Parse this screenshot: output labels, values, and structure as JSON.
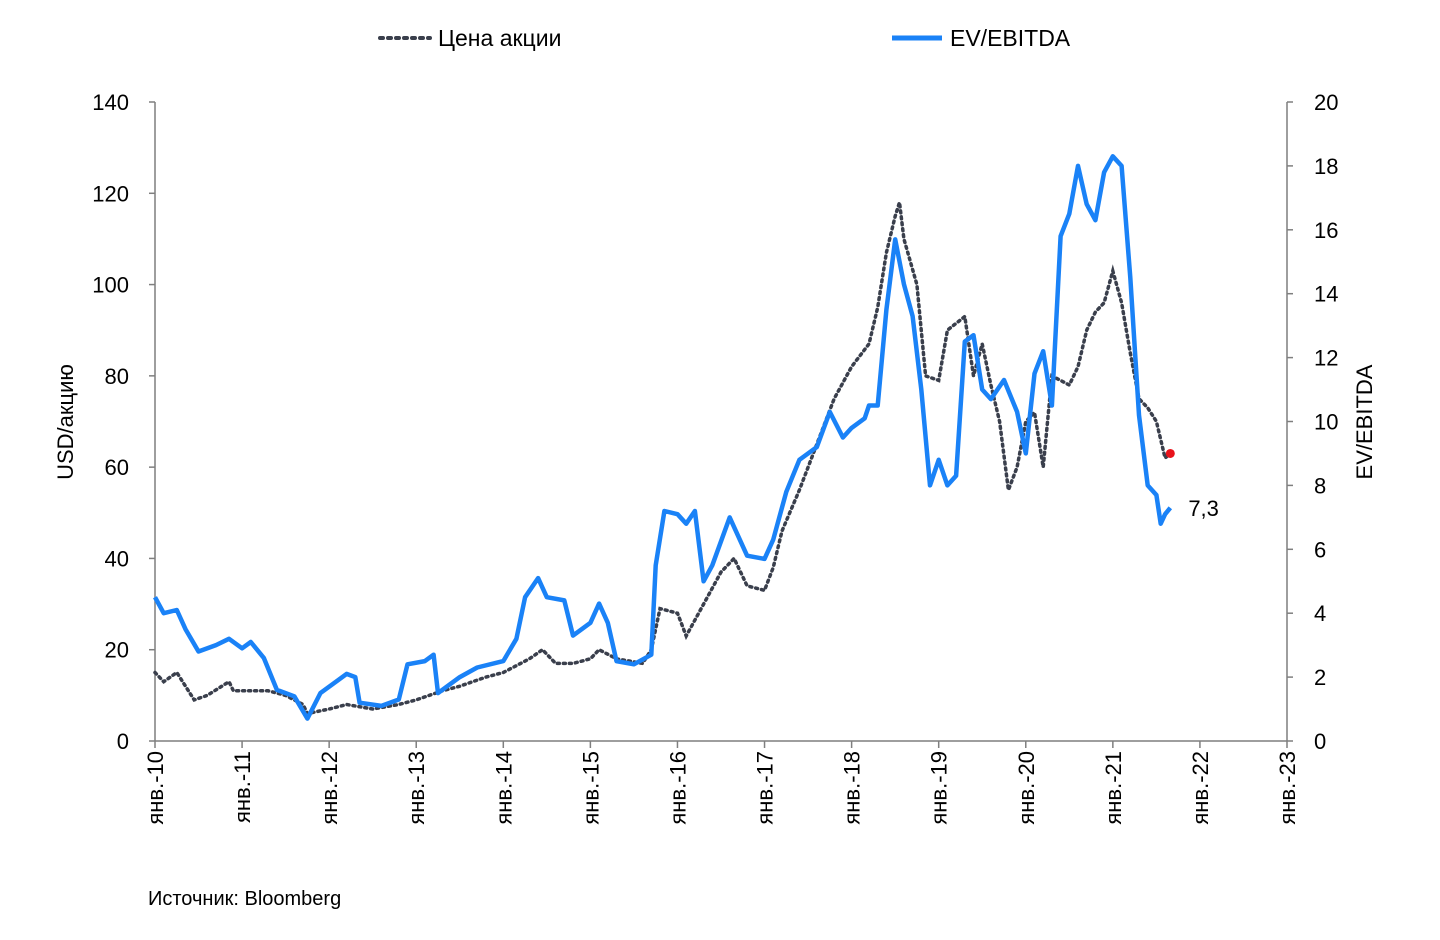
{
  "chart_data": {
    "type": "line",
    "title": "",
    "source": "Источник: Bloomberg",
    "left_axis": {
      "label": "USD/акцию",
      "ylim": [
        0,
        140
      ],
      "ticks": [
        0,
        20,
        40,
        60,
        80,
        100,
        120,
        140
      ]
    },
    "right_axis": {
      "label": "EV/EBITDA",
      "ylim": [
        0,
        20
      ],
      "ticks": [
        0,
        2,
        4,
        6,
        8,
        10,
        12,
        14,
        16,
        18,
        20
      ]
    },
    "x_axis": {
      "range": [
        2010,
        2023
      ],
      "ticks": [
        {
          "x": 2010,
          "label": "янв.-10"
        },
        {
          "x": 2011,
          "label": "янв.-11"
        },
        {
          "x": 2012,
          "label": "янв.-12"
        },
        {
          "x": 2013,
          "label": "янв.-13"
        },
        {
          "x": 2014,
          "label": "янв.-14"
        },
        {
          "x": 2015,
          "label": "янв.-15"
        },
        {
          "x": 2016,
          "label": "янв.-16"
        },
        {
          "x": 2017,
          "label": "янв.-17"
        },
        {
          "x": 2018,
          "label": "янв.-18"
        },
        {
          "x": 2019,
          "label": "янв.-19"
        },
        {
          "x": 2020,
          "label": "янв.-20"
        },
        {
          "x": 2021,
          "label": "янв.-21"
        },
        {
          "x": 2022,
          "label": "янв.-22"
        },
        {
          "x": 2023,
          "label": "янв.-23"
        }
      ]
    },
    "legend": {
      "placement": "top"
    },
    "series": [
      {
        "name": "Цена акции",
        "axis": "left",
        "style": "dotted",
        "color": "#3a3f4c",
        "points": [
          [
            2010.0,
            15
          ],
          [
            2010.1,
            13
          ],
          [
            2010.25,
            15
          ],
          [
            2010.45,
            9
          ],
          [
            2010.6,
            10
          ],
          [
            2010.85,
            13
          ],
          [
            2010.9,
            11
          ],
          [
            2011.1,
            11
          ],
          [
            2011.3,
            11
          ],
          [
            2011.5,
            10
          ],
          [
            2011.7,
            8
          ],
          [
            2011.75,
            6
          ],
          [
            2012.0,
            7
          ],
          [
            2012.2,
            8
          ],
          [
            2012.5,
            7
          ],
          [
            2012.8,
            8
          ],
          [
            2013.0,
            9
          ],
          [
            2013.3,
            11
          ],
          [
            2013.5,
            12
          ],
          [
            2013.8,
            14
          ],
          [
            2014.0,
            15
          ],
          [
            2014.3,
            18
          ],
          [
            2014.45,
            20
          ],
          [
            2014.6,
            17
          ],
          [
            2014.8,
            17
          ],
          [
            2015.0,
            18
          ],
          [
            2015.1,
            20
          ],
          [
            2015.3,
            18
          ],
          [
            2015.6,
            17
          ],
          [
            2015.7,
            20
          ],
          [
            2015.8,
            29
          ],
          [
            2016.0,
            28
          ],
          [
            2016.1,
            23
          ],
          [
            2016.3,
            30
          ],
          [
            2016.5,
            37
          ],
          [
            2016.65,
            40
          ],
          [
            2016.8,
            34
          ],
          [
            2017.0,
            33
          ],
          [
            2017.1,
            38
          ],
          [
            2017.2,
            46
          ],
          [
            2017.4,
            55
          ],
          [
            2017.6,
            65
          ],
          [
            2017.8,
            75
          ],
          [
            2018.0,
            82
          ],
          [
            2018.2,
            87
          ],
          [
            2018.3,
            95
          ],
          [
            2018.4,
            107
          ],
          [
            2018.5,
            115
          ],
          [
            2018.55,
            118
          ],
          [
            2018.6,
            110
          ],
          [
            2018.75,
            100
          ],
          [
            2018.85,
            80
          ],
          [
            2019.0,
            79
          ],
          [
            2019.1,
            90
          ],
          [
            2019.3,
            93
          ],
          [
            2019.4,
            80
          ],
          [
            2019.5,
            87
          ],
          [
            2019.6,
            78
          ],
          [
            2019.7,
            70
          ],
          [
            2019.8,
            55
          ],
          [
            2019.9,
            60
          ],
          [
            2020.0,
            70
          ],
          [
            2020.1,
            72
          ],
          [
            2020.2,
            60
          ],
          [
            2020.3,
            80
          ],
          [
            2020.5,
            78
          ],
          [
            2020.6,
            82
          ],
          [
            2020.7,
            90
          ],
          [
            2020.8,
            94
          ],
          [
            2020.9,
            96
          ],
          [
            2021.0,
            103
          ],
          [
            2021.1,
            96
          ],
          [
            2021.2,
            85
          ],
          [
            2021.3,
            75
          ],
          [
            2021.4,
            73
          ],
          [
            2021.5,
            70
          ],
          [
            2021.6,
            62
          ],
          [
            2021.66,
            63
          ]
        ]
      },
      {
        "name": "EV/EBITDA",
        "axis": "right",
        "style": "solid",
        "color": "#1a82f7",
        "points": [
          [
            2010.0,
            4.5
          ],
          [
            2010.1,
            4.0
          ],
          [
            2010.25,
            4.1
          ],
          [
            2010.35,
            3.5
          ],
          [
            2010.5,
            2.8
          ],
          [
            2010.7,
            3.0
          ],
          [
            2010.85,
            3.2
          ],
          [
            2011.0,
            2.9
          ],
          [
            2011.1,
            3.1
          ],
          [
            2011.25,
            2.6
          ],
          [
            2011.4,
            1.6
          ],
          [
            2011.6,
            1.4
          ],
          [
            2011.75,
            0.7
          ],
          [
            2011.9,
            1.5
          ],
          [
            2012.1,
            1.9
          ],
          [
            2012.2,
            2.1
          ],
          [
            2012.3,
            2.0
          ],
          [
            2012.35,
            1.2
          ],
          [
            2012.6,
            1.1
          ],
          [
            2012.8,
            1.3
          ],
          [
            2012.9,
            2.4
          ],
          [
            2013.1,
            2.5
          ],
          [
            2013.2,
            2.7
          ],
          [
            2013.25,
            1.5
          ],
          [
            2013.5,
            2.0
          ],
          [
            2013.7,
            2.3
          ],
          [
            2014.0,
            2.5
          ],
          [
            2014.15,
            3.2
          ],
          [
            2014.25,
            4.5
          ],
          [
            2014.4,
            5.1
          ],
          [
            2014.5,
            4.5
          ],
          [
            2014.7,
            4.4
          ],
          [
            2014.8,
            3.3
          ],
          [
            2015.0,
            3.7
          ],
          [
            2015.1,
            4.3
          ],
          [
            2015.2,
            3.7
          ],
          [
            2015.3,
            2.5
          ],
          [
            2015.5,
            2.4
          ],
          [
            2015.7,
            2.7
          ],
          [
            2015.75,
            5.5
          ],
          [
            2015.85,
            7.2
          ],
          [
            2016.0,
            7.1
          ],
          [
            2016.1,
            6.8
          ],
          [
            2016.2,
            7.2
          ],
          [
            2016.3,
            5.0
          ],
          [
            2016.4,
            5.5
          ],
          [
            2016.6,
            7.0
          ],
          [
            2016.8,
            5.8
          ],
          [
            2017.0,
            5.7
          ],
          [
            2017.1,
            6.3
          ],
          [
            2017.25,
            7.8
          ],
          [
            2017.4,
            8.8
          ],
          [
            2017.6,
            9.2
          ],
          [
            2017.75,
            10.3
          ],
          [
            2017.9,
            9.5
          ],
          [
            2018.0,
            9.8
          ],
          [
            2018.15,
            10.1
          ],
          [
            2018.2,
            10.5
          ],
          [
            2018.3,
            10.5
          ],
          [
            2018.4,
            13.5
          ],
          [
            2018.5,
            15.7
          ],
          [
            2018.6,
            14.3
          ],
          [
            2018.7,
            13.3
          ],
          [
            2018.8,
            11.0
          ],
          [
            2018.9,
            8.0
          ],
          [
            2019.0,
            8.8
          ],
          [
            2019.1,
            8.0
          ],
          [
            2019.2,
            8.3
          ],
          [
            2019.3,
            12.5
          ],
          [
            2019.4,
            12.7
          ],
          [
            2019.5,
            11.0
          ],
          [
            2019.6,
            10.7
          ],
          [
            2019.75,
            11.3
          ],
          [
            2019.9,
            10.3
          ],
          [
            2020.0,
            9.0
          ],
          [
            2020.1,
            11.5
          ],
          [
            2020.2,
            12.2
          ],
          [
            2020.3,
            10.5
          ],
          [
            2020.4,
            15.8
          ],
          [
            2020.5,
            16.5
          ],
          [
            2020.6,
            18.0
          ],
          [
            2020.7,
            16.8
          ],
          [
            2020.8,
            16.3
          ],
          [
            2020.9,
            17.8
          ],
          [
            2021.0,
            18.3
          ],
          [
            2021.1,
            18.0
          ],
          [
            2021.2,
            14.5
          ],
          [
            2021.3,
            10.2
          ],
          [
            2021.4,
            8.0
          ],
          [
            2021.5,
            7.7
          ],
          [
            2021.55,
            6.8
          ],
          [
            2021.6,
            7.1
          ],
          [
            2021.66,
            7.3
          ]
        ]
      }
    ],
    "marker": {
      "x": 2021.66,
      "y": 63,
      "axis": "left",
      "color": "#e8131b"
    },
    "annotation": {
      "text": "7,3",
      "x": 2021.66,
      "y": 7.3,
      "axis": "right"
    }
  }
}
